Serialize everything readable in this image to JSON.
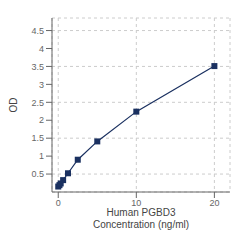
{
  "chart_data": {
    "type": "line",
    "x_label": "Human PGBD3\nConcentration (ng/ml)",
    "y_label": "OD",
    "x": [
      0.0,
      0.156,
      0.313,
      0.625,
      1.25,
      2.5,
      5.0,
      10.0,
      20.0
    ],
    "values": [
      0.152,
      0.192,
      0.238,
      0.331,
      0.522,
      0.9,
      1.41,
      2.24,
      3.51
    ],
    "color": "#1a3060",
    "marker": "square",
    "xlim": [
      -0.8,
      22.0
    ],
    "ylim": [
      0.0,
      4.85
    ],
    "xticks": [
      0,
      10,
      20
    ],
    "yticks": [
      0.5,
      1,
      1.5,
      2,
      2.5,
      3,
      3.5,
      4,
      4.5
    ],
    "grid": true
  }
}
